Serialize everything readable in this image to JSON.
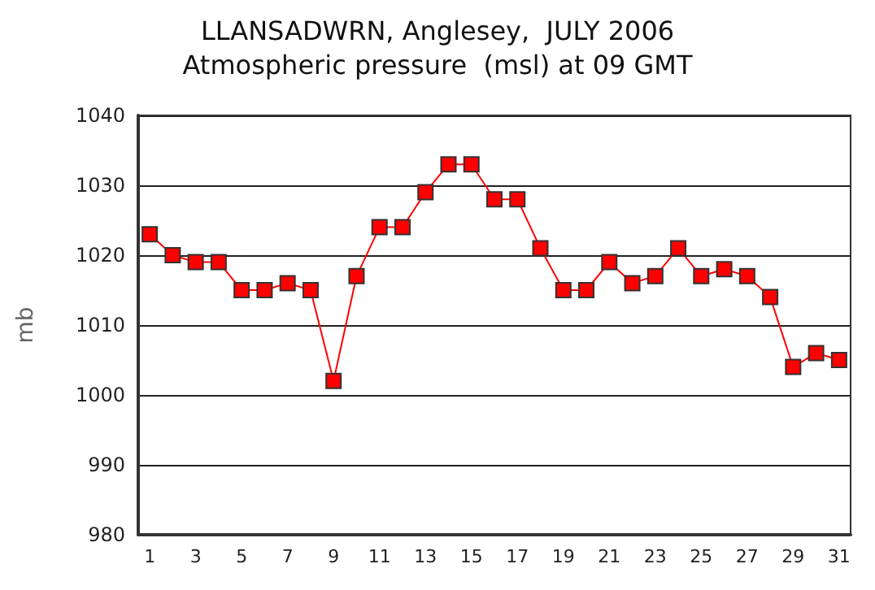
{
  "chart_data": {
    "type": "line",
    "title": "LLANSADWRN, Anglesey,  JULY 2006",
    "subtitle": "Atmospheric pressure  (msl) at 09 GMT",
    "ylabel": "mb",
    "x": [
      1,
      2,
      3,
      4,
      5,
      6,
      7,
      8,
      9,
      10,
      11,
      12,
      13,
      14,
      15,
      16,
      17,
      18,
      19,
      20,
      21,
      22,
      23,
      24,
      25,
      26,
      27,
      28,
      29,
      30,
      31
    ],
    "series": [
      {
        "color": "#ff0000",
        "values": [
          1023,
          1020,
          1019,
          1019,
          1015,
          1015,
          1016,
          1015,
          1002,
          1017,
          1024,
          1024,
          1029,
          1033,
          1033,
          1028,
          1028,
          1021,
          1015,
          1015,
          1019,
          1016,
          1017,
          1021,
          1017,
          1018,
          1017,
          1014,
          1004,
          1006,
          1005
        ]
      }
    ],
    "xlim": [
      0.5,
      31.5
    ],
    "xticks": [
      1,
      3,
      5,
      7,
      9,
      11,
      13,
      15,
      17,
      19,
      21,
      23,
      25,
      27,
      29,
      31
    ],
    "ylim": [
      980,
      1040
    ],
    "yticks": [
      980,
      990,
      1000,
      1010,
      1020,
      1030,
      1040
    ],
    "grid": "y",
    "marker": "square",
    "line_style": "solid"
  }
}
